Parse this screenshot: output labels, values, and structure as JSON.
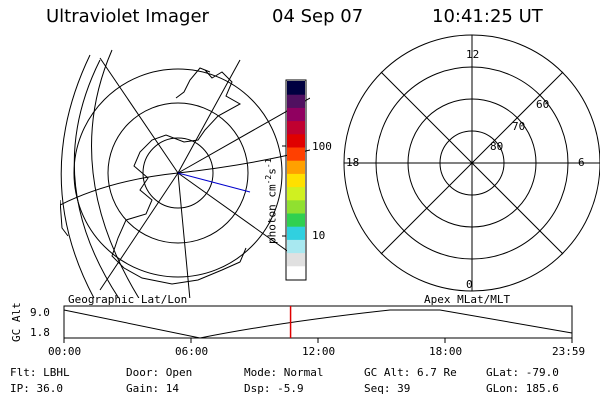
{
  "header": {
    "instrument": "Ultraviolet Imager",
    "date": "04 Sep 07",
    "time": "10:41:25 UT"
  },
  "left_panel": {
    "label": "Geographic Lat/Lon"
  },
  "right_panel": {
    "label": "Apex MLat/MLT",
    "mlt_labels": {
      "top": "12",
      "bottom": "0",
      "left": "18",
      "right": "6"
    },
    "mlat_labels": [
      "60",
      "70",
      "80"
    ]
  },
  "colorbar": {
    "unit_label": "photon cm",
    "unit_exp1": "-2",
    "unit_mid": "s",
    "unit_exp2": "-1",
    "tick_labels": [
      "100",
      "10"
    ],
    "colors": [
      "#ffffff",
      "#e0e0e0",
      "#a8e8f0",
      "#30d0e0",
      "#30d050",
      "#90e030",
      "#d0f020",
      "#ffe000",
      "#ffa000",
      "#ff4000",
      "#e00000",
      "#c00030",
      "#900060",
      "#501060",
      "#000040"
    ]
  },
  "orbit_plot": {
    "ylabel": "GC Alt",
    "ytick_top": "9.0",
    "ytick_bottom": "1.8",
    "xticks": [
      "00:00",
      "06:00",
      "12:00",
      "18:00",
      "23:59"
    ],
    "marker_time_fraction": 0.446
  },
  "status": {
    "flt": "Flt: LBHL",
    "ip": "IP: 36.0",
    "door": "Door: Open",
    "gain": "Gain: 14",
    "mode": "Mode: Normal",
    "dsp": "Dsp:   -5.9",
    "gc_alt": "GC Alt: 6.7 Re",
    "seq": "Seq: 39",
    "glat": "GLat: -79.0",
    "glon": "GLon: 185.6"
  },
  "colors": {
    "marker": "#e00000",
    "meridian": "#0000cc"
  }
}
